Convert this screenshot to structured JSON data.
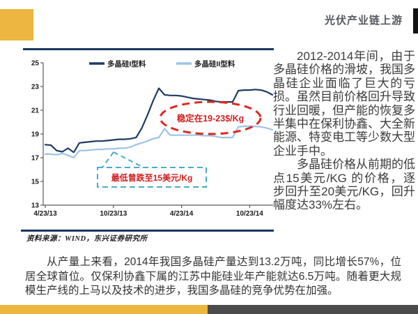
{
  "header": {
    "title": "光伏产业链上游"
  },
  "chart": {
    "y_ticks": [
      25,
      23,
      21,
      19,
      17,
      15,
      13
    ],
    "x_ticks": [
      "4/23/13",
      "10/23/13",
      "4/23/14",
      "10/23/14"
    ],
    "annotations": {
      "ellipse_label": "稳定在19-23$/Kg",
      "callout_label": "最低曾跌至15美元/Kg"
    },
    "source": "资料来源：WIND，东兴证券研究所"
  },
  "chart_data": {
    "type": "line",
    "title": "",
    "xlabel": "",
    "ylabel": "",
    "y_range": [
      13,
      25
    ],
    "grid": false,
    "legend_position": "top",
    "x_tick_labels": [
      "4/23/13",
      "10/23/13",
      "4/23/14",
      "10/23/14"
    ],
    "x_tick_indices": [
      0,
      12,
      24,
      36
    ],
    "x_unit": "half-month steps from 4/23/13 to late Dec 2014",
    "series": [
      {
        "name": "多晶硅I型料",
        "color": "#1F3B63",
        "values": [
          18.1,
          18.05,
          17.6,
          17.5,
          17.8,
          17.45,
          18.25,
          18.3,
          18.35,
          18.4,
          18.4,
          18.45,
          18.5,
          18.55,
          18.55,
          18.6,
          18.7,
          19.5,
          20.6,
          21.8,
          22.85,
          22.3,
          22.25,
          22.25,
          22.2,
          22.1,
          22.0,
          21.95,
          21.9,
          21.85,
          21.75,
          21.7,
          21.7,
          21.7,
          22.65,
          22.7,
          22.7,
          22.75,
          22.7,
          22.55,
          22.3
        ]
      },
      {
        "name": "多晶硅II型料",
        "color": "#9DC3E6",
        "values": [
          17.3,
          17.3,
          17.25,
          17.35,
          17.2,
          17.0,
          17.6,
          17.6,
          17.65,
          17.7,
          17.7,
          17.75,
          17.75,
          17.8,
          17.8,
          17.9,
          18.1,
          18.25,
          18.4,
          18.6,
          18.7,
          19.45,
          18.9,
          18.9,
          18.9,
          18.9,
          18.9,
          18.9,
          18.85,
          18.85,
          18.8,
          18.7,
          18.7,
          18.7,
          19.6,
          19.65,
          19.65,
          19.65,
          19.6,
          19.5,
          19.35
        ]
      }
    ]
  },
  "body": {
    "paragraph1": "2012-2014年间，由于多晶硅价格的滑坡，我国多晶硅企业面临了巨大的亏损。虽然目前价格回升导致行业回暖，但产能的恢复多半集中在保利协鑫、大全新能源、特变电工等少数大型企业手中。",
    "paragraph2": "多晶硅价格从前期的低点15美元/KG 的价格，逐步回升至20美元/KG，回升幅度达33%左右。",
    "bottom_paragraph": "从产量上来看，2014年我国多晶硅产量达到13.2万吨，同比增长57%，位居全球首位。仅保利协鑫下属的江苏中能硅业年产能就达6.5万吨。随着更大规模生产线的上马以及技术的进步，我国多晶硅的竞争优势在加强。"
  },
  "colors": {
    "accent_yellow": "#EDB640",
    "footer_dark": "#4B4B4B",
    "title_gray": "#55585D",
    "frame_navy": "#17375E",
    "series1_navy": "#1F3B63",
    "series2_lightblue": "#9DC3E6",
    "annotation_red": "#D21E1E",
    "annotation_teal": "#4BACC6"
  }
}
